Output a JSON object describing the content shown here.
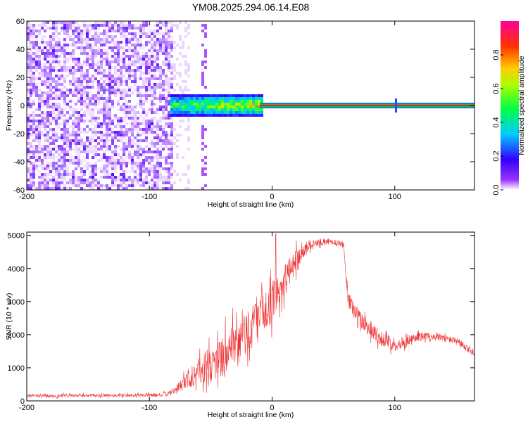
{
  "title": "YM08.2025.294.06.14.E08",
  "chart_data": [
    {
      "type": "heatmap",
      "title": "YM08.2025.294.06.14.E08",
      "xlabel": "Height of straight line (km)",
      "ylabel": "Frequency (Hz)",
      "xlim": [
        -200,
        165
      ],
      "ylim": [
        -60,
        60
      ],
      "xticks": [
        -200,
        -100,
        0,
        100
      ],
      "xtick_labels": [
        "-200",
        "-100",
        "0",
        "100"
      ],
      "yticks": [
        -60,
        -40,
        -20,
        0,
        20,
        40,
        60
      ],
      "ytick_labels": [
        "-60",
        "-40",
        "-20",
        "0",
        "20",
        "40",
        "60"
      ],
      "colorbar": {
        "label": "Normalized spectral amplitude",
        "range": [
          0,
          1
        ],
        "ticks": [
          0.0,
          0.2,
          0.4,
          0.6,
          0.8
        ],
        "tick_labels": [
          "0.0",
          "0.2",
          "0.4",
          "0.6",
          "0.8"
        ],
        "colormap": [
          "#ffffff",
          "#8800ff",
          "#0000ff",
          "#00ffff",
          "#00ff00",
          "#ffff00",
          "#ff8000",
          "#ff0000",
          "#ff00aa"
        ]
      },
      "features": {
        "noise_region_x": [
          -200,
          -80
        ],
        "noise_amplitude": 0.05,
        "noise_stripe_x": -55,
        "signal_onset_x": -82,
        "cluster_x": [
          -82,
          -8
        ],
        "cluster_freq_halfwidth": 8,
        "cluster_amplitude_peak": 0.6,
        "line_x": [
          -10,
          165
        ],
        "line_freq": 0,
        "line_amplitude": 0.85,
        "spike_x": 101
      }
    },
    {
      "type": "line",
      "xlabel": "Height of straight line (km)",
      "ylabel": "SNR (10 * v/v)",
      "xlim": [
        -200,
        165
      ],
      "ylim": [
        0,
        5100
      ],
      "xticks": [
        -200,
        -100,
        0,
        100
      ],
      "xtick_labels": [
        "-200",
        "-100",
        "0",
        "100"
      ],
      "yticks": [
        0,
        1000,
        2000,
        3000,
        4000,
        5000
      ],
      "ytick_labels": [
        "0",
        "1000",
        "2000",
        "3000",
        "4000",
        "5000"
      ],
      "color": "#ee3333",
      "envelope": {
        "x": [
          -200,
          -120,
          -90,
          -82,
          -75,
          -68,
          -60,
          -50,
          -40,
          -30,
          -20,
          -10,
          0,
          10,
          20,
          30,
          40,
          50,
          58,
          62,
          70,
          80,
          90,
          100,
          110,
          120,
          130,
          140,
          150,
          160,
          165
        ],
        "mean": [
          150,
          170,
          180,
          250,
          450,
          700,
          900,
          1100,
          1350,
          1600,
          2100,
          2500,
          3000,
          3600,
          4300,
          4700,
          4800,
          4800,
          4750,
          3100,
          2500,
          2200,
          1850,
          1700,
          1800,
          1950,
          1950,
          1900,
          1800,
          1550,
          1450
        ],
        "amp": [
          90,
          90,
          100,
          150,
          300,
          600,
          800,
          1000,
          1200,
          1300,
          1300,
          1200,
          1100,
          900,
          600,
          250,
          200,
          150,
          150,
          500,
          600,
          500,
          400,
          350,
          300,
          250,
          200,
          200,
          200,
          200,
          200
        ]
      },
      "peak": {
        "x": 3,
        "y": 5050
      }
    }
  ]
}
